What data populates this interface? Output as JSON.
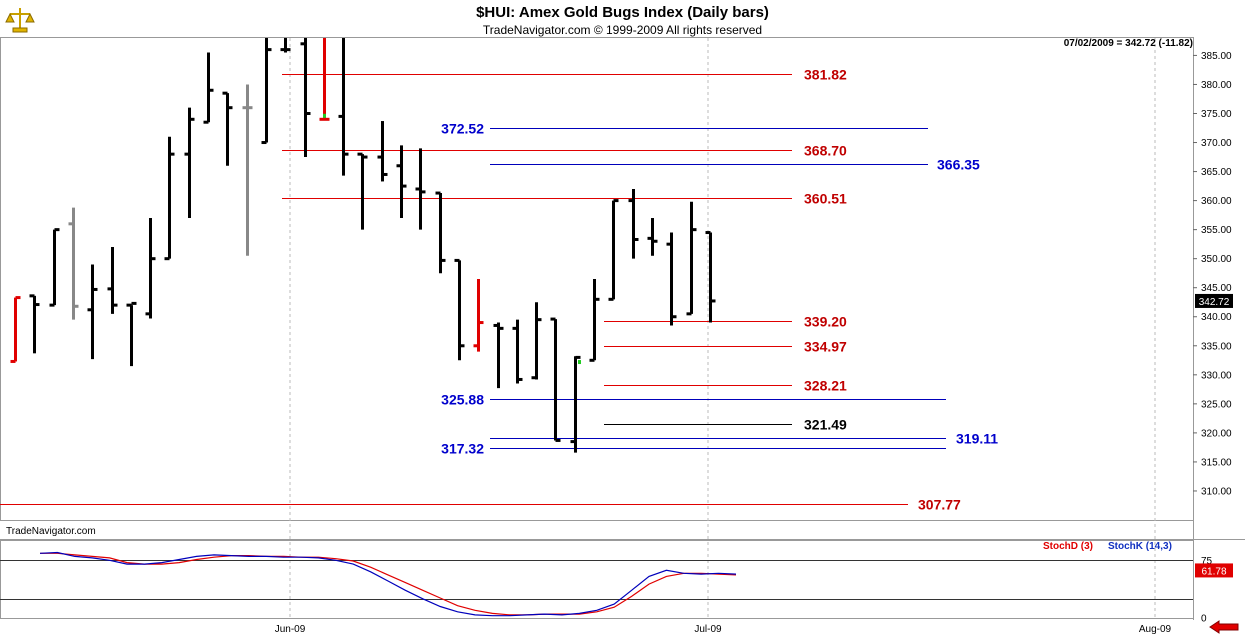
{
  "header": {
    "title": "$HUI:  Amex Gold Bugs Index  (Daily bars)",
    "subtitle": "TradeNavigator.com © 1999-2009 All rights reserved",
    "readout": "07/02/2009 = 342.72 (-11.82)",
    "source_label": "TradeNavigator.com"
  },
  "icons": {
    "logo": "bull-bear-logo-icon",
    "nav": "back-arrow-icon"
  },
  "colors": {
    "up": "#000000",
    "down_highlight": "#e00000",
    "gray_bar": "#888888",
    "support": "#cc0000",
    "fib_blue": "#0000bb",
    "stoch_d": "#e00000",
    "stoch_k": "#1030c0"
  },
  "chart_data": [
    {
      "type": "ohlc",
      "title": "$HUI:  Amex Gold Bugs Index  (Daily bars)",
      "ylim": [
        305,
        388
      ],
      "yticks": [
        310,
        315,
        320,
        325,
        330,
        335,
        340,
        345,
        350,
        355,
        360,
        365,
        370,
        375,
        380,
        385
      ],
      "ytick_labels": [
        "310.00",
        "315.00",
        "320.00",
        "325.00",
        "330.00",
        "335.00",
        "340.00",
        "345.00",
        "350.00",
        "355.00",
        "360.00",
        "365.00",
        "370.00",
        "375.00",
        "380.00",
        "385.00"
      ],
      "xlabels": [
        "Jun-09",
        "Jul-09",
        "Aug-09"
      ],
      "last_value_label": "342.72",
      "bars": [
        {
          "o": 332.3,
          "h": 343.3,
          "l": 332.3,
          "c": 343.3,
          "color": "red"
        },
        {
          "o": 343.6,
          "h": 343.6,
          "l": 333.7,
          "c": 342.1,
          "color": "black"
        },
        {
          "o": 342.0,
          "h": 355.0,
          "l": 342.0,
          "c": 355.0,
          "color": "black"
        },
        {
          "o": 356.0,
          "h": 358.8,
          "l": 339.5,
          "c": 341.8,
          "color": "gray"
        },
        {
          "o": 341.2,
          "h": 349.0,
          "l": 332.7,
          "c": 344.7,
          "color": "black"
        },
        {
          "o": 344.8,
          "h": 352.0,
          "l": 340.5,
          "c": 342.0,
          "color": "black"
        },
        {
          "o": 342.0,
          "h": 342.0,
          "l": 331.5,
          "c": 342.3,
          "color": "black"
        },
        {
          "o": 340.5,
          "h": 357.0,
          "l": 339.7,
          "c": 350.0,
          "color": "black"
        },
        {
          "o": 350.0,
          "h": 371.0,
          "l": 350.0,
          "c": 368.0,
          "color": "black"
        },
        {
          "o": 368.0,
          "h": 376.0,
          "l": 357.0,
          "c": 374.0,
          "color": "black"
        },
        {
          "o": 373.5,
          "h": 385.5,
          "l": 373.5,
          "c": 379.0,
          "color": "black"
        },
        {
          "o": 378.5,
          "h": 378.5,
          "l": 366.0,
          "c": 376.0,
          "color": "black"
        },
        {
          "o": 376.0,
          "h": 380.0,
          "l": 350.5,
          "c": 376.0,
          "color": "gray"
        },
        {
          "o": 370.0,
          "h": 388.0,
          "l": 370.0,
          "c": 386.0,
          "color": "black"
        },
        {
          "o": 386.0,
          "h": 388.0,
          "l": 385.5,
          "c": 386.0,
          "color": "black"
        },
        {
          "o": 387.0,
          "h": 388.0,
          "l": 367.5,
          "c": 375.0,
          "color": "black"
        },
        {
          "o": 374.0,
          "h": 388.0,
          "l": 374.0,
          "c": 374.0,
          "color": "red"
        },
        {
          "o": 374.5,
          "h": 388.0,
          "l": 364.3,
          "c": 368.0,
          "color": "black"
        },
        {
          "o": 368.0,
          "h": 368.0,
          "l": 355.0,
          "c": 367.5,
          "color": "black"
        },
        {
          "o": 367.5,
          "h": 373.7,
          "l": 363.3,
          "c": 364.5,
          "color": "black"
        },
        {
          "o": 366.0,
          "h": 369.5,
          "l": 357.0,
          "c": 362.5,
          "color": "black"
        },
        {
          "o": 362.0,
          "h": 369.0,
          "l": 355.0,
          "c": 361.5,
          "color": "black"
        },
        {
          "o": 361.3,
          "h": 361.3,
          "l": 347.5,
          "c": 349.7,
          "color": "black"
        },
        {
          "o": 349.7,
          "h": 349.7,
          "l": 332.5,
          "c": 335.0,
          "color": "black"
        },
        {
          "o": 335.0,
          "h": 346.5,
          "l": 334.0,
          "c": 339.0,
          "color": "red"
        },
        {
          "o": 338.5,
          "h": 339.0,
          "l": 327.7,
          "c": 338.0,
          "color": "black"
        },
        {
          "o": 338.0,
          "h": 339.5,
          "l": 328.5,
          "c": 329.2,
          "color": "black"
        },
        {
          "o": 329.5,
          "h": 342.5,
          "l": 329.2,
          "c": 339.5,
          "color": "black"
        },
        {
          "o": 339.6,
          "h": 339.6,
          "l": 318.7,
          "c": 318.7,
          "color": "black"
        },
        {
          "o": 318.5,
          "h": 333.2,
          "l": 316.6,
          "c": 333.0,
          "color": "black"
        },
        {
          "o": 332.5,
          "h": 346.5,
          "l": 332.5,
          "c": 343.0,
          "color": "black"
        },
        {
          "o": 343.0,
          "h": 360.0,
          "l": 343.0,
          "c": 360.0,
          "color": "black"
        },
        {
          "o": 360.0,
          "h": 362.0,
          "l": 350.0,
          "c": 353.3,
          "color": "black"
        },
        {
          "o": 353.5,
          "h": 357.0,
          "l": 350.5,
          "c": 353.0,
          "color": "black"
        },
        {
          "o": 352.5,
          "h": 354.5,
          "l": 338.5,
          "c": 340.0,
          "color": "black"
        },
        {
          "o": 340.5,
          "h": 359.8,
          "l": 340.5,
          "c": 355.0,
          "color": "black"
        },
        {
          "o": 354.5,
          "h": 354.5,
          "l": 339.0,
          "c": 342.72,
          "color": "black"
        }
      ],
      "levels": [
        {
          "value": 381.82,
          "label": "381.82",
          "color": "red"
        },
        {
          "value": 372.52,
          "label": "372.52",
          "color": "blue"
        },
        {
          "value": 368.7,
          "label": "368.70",
          "color": "red"
        },
        {
          "value": 366.35,
          "label": "366.35",
          "color": "blue"
        },
        {
          "value": 360.51,
          "label": "360.51",
          "color": "red"
        },
        {
          "value": 339.2,
          "label": "339.20",
          "color": "red"
        },
        {
          "value": 334.97,
          "label": "334.97",
          "color": "red"
        },
        {
          "value": 328.21,
          "label": "328.21",
          "color": "red"
        },
        {
          "value": 325.88,
          "label": "325.88",
          "color": "blue"
        },
        {
          "value": 321.49,
          "label": "321.49",
          "color": "black"
        },
        {
          "value": 319.11,
          "label": "319.11",
          "color": "blue"
        },
        {
          "value": 317.32,
          "label": "317.32",
          "color": "blue"
        },
        {
          "value": 307.77,
          "label": "307.77",
          "color": "red"
        }
      ]
    },
    {
      "type": "line",
      "title": "",
      "ylim": [
        0,
        100
      ],
      "yticks": [
        0,
        75
      ],
      "reference_lines": [
        75,
        25
      ],
      "series": [
        {
          "name": "StochD (3)",
          "legend": "StochD (3)",
          "color": "red",
          "values": [
            84,
            84,
            82,
            80,
            78,
            72,
            70,
            70,
            72,
            76,
            79,
            81,
            81,
            80,
            80,
            79,
            79,
            77,
            74,
            66,
            56,
            46,
            36,
            26,
            16,
            10,
            6,
            4,
            4,
            5,
            5,
            5,
            8,
            14,
            28,
            44,
            54,
            58,
            58,
            57,
            56
          ]
        },
        {
          "name": "StochK (14,3)",
          "legend": "StochK (14,3)",
          "color": "blue",
          "values": [
            84,
            85,
            80,
            78,
            75,
            70,
            70,
            72,
            76,
            80,
            82,
            81,
            80,
            80,
            79,
            79,
            78,
            75,
            70,
            60,
            48,
            36,
            25,
            15,
            8,
            4,
            3,
            3,
            4,
            5,
            4,
            6,
            10,
            18,
            36,
            54,
            62,
            58,
            57,
            58,
            57
          ]
        },
        {
          "last_value_label": "61.78"
        }
      ]
    }
  ]
}
